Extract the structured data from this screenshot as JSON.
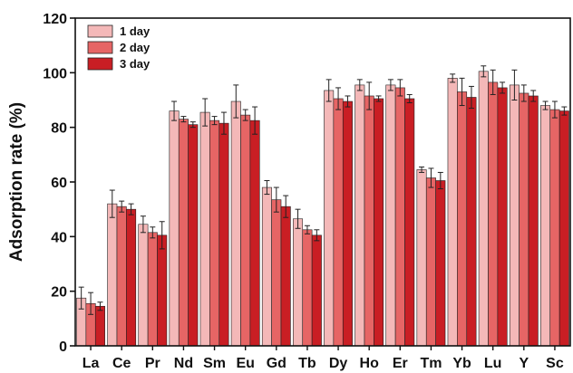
{
  "chart_data": {
    "type": "bar",
    "title": "",
    "xlabel": "",
    "ylabel": "Adsorption rate (%)",
    "ylim": [
      0,
      120
    ],
    "yticks": [
      0,
      20,
      40,
      60,
      80,
      100,
      120
    ],
    "grid": false,
    "legend_position": "top-left",
    "categories": [
      "La",
      "Ce",
      "Pr",
      "Nd",
      "Sm",
      "Eu",
      "Gd",
      "Tb",
      "Dy",
      "Ho",
      "Er",
      "Tm",
      "Yb",
      "Lu",
      "Y",
      "Sc"
    ],
    "series": [
      {
        "name": "1 day",
        "color": "#f4b8b8",
        "values": [
          17.5,
          52,
          44.5,
          86,
          85.5,
          89.5,
          58,
          46.5,
          93.5,
          95.5,
          95.5,
          64.5,
          98,
          100.5,
          95.5,
          88
        ],
        "errors": [
          4,
          5,
          3,
          3.5,
          5,
          6,
          2.5,
          3.5,
          4,
          2,
          2,
          1,
          1.5,
          2,
          5.5,
          1.5
        ]
      },
      {
        "name": "2 day",
        "color": "#e66565",
        "values": [
          15.5,
          51,
          41.5,
          83,
          82.5,
          84.5,
          53.5,
          42.5,
          90.5,
          91.5,
          94.5,
          61.5,
          93,
          96.5,
          92.5,
          86.5
        ],
        "errors": [
          4,
          2,
          2,
          1,
          1.5,
          2,
          4.5,
          1.5,
          4,
          5,
          3,
          3.5,
          5,
          4.5,
          3,
          3
        ]
      },
      {
        "name": "3 day",
        "color": "#c91e24",
        "values": [
          14.5,
          50,
          40.5,
          81,
          81.5,
          82.5,
          51,
          40.5,
          89.5,
          90.5,
          90.5,
          60.5,
          91,
          94.5,
          91.5,
          86
        ],
        "errors": [
          1.5,
          2,
          5,
          1,
          4,
          5,
          4,
          2,
          2,
          1,
          1.5,
          3,
          4,
          2,
          2,
          1.5
        ]
      }
    ]
  }
}
